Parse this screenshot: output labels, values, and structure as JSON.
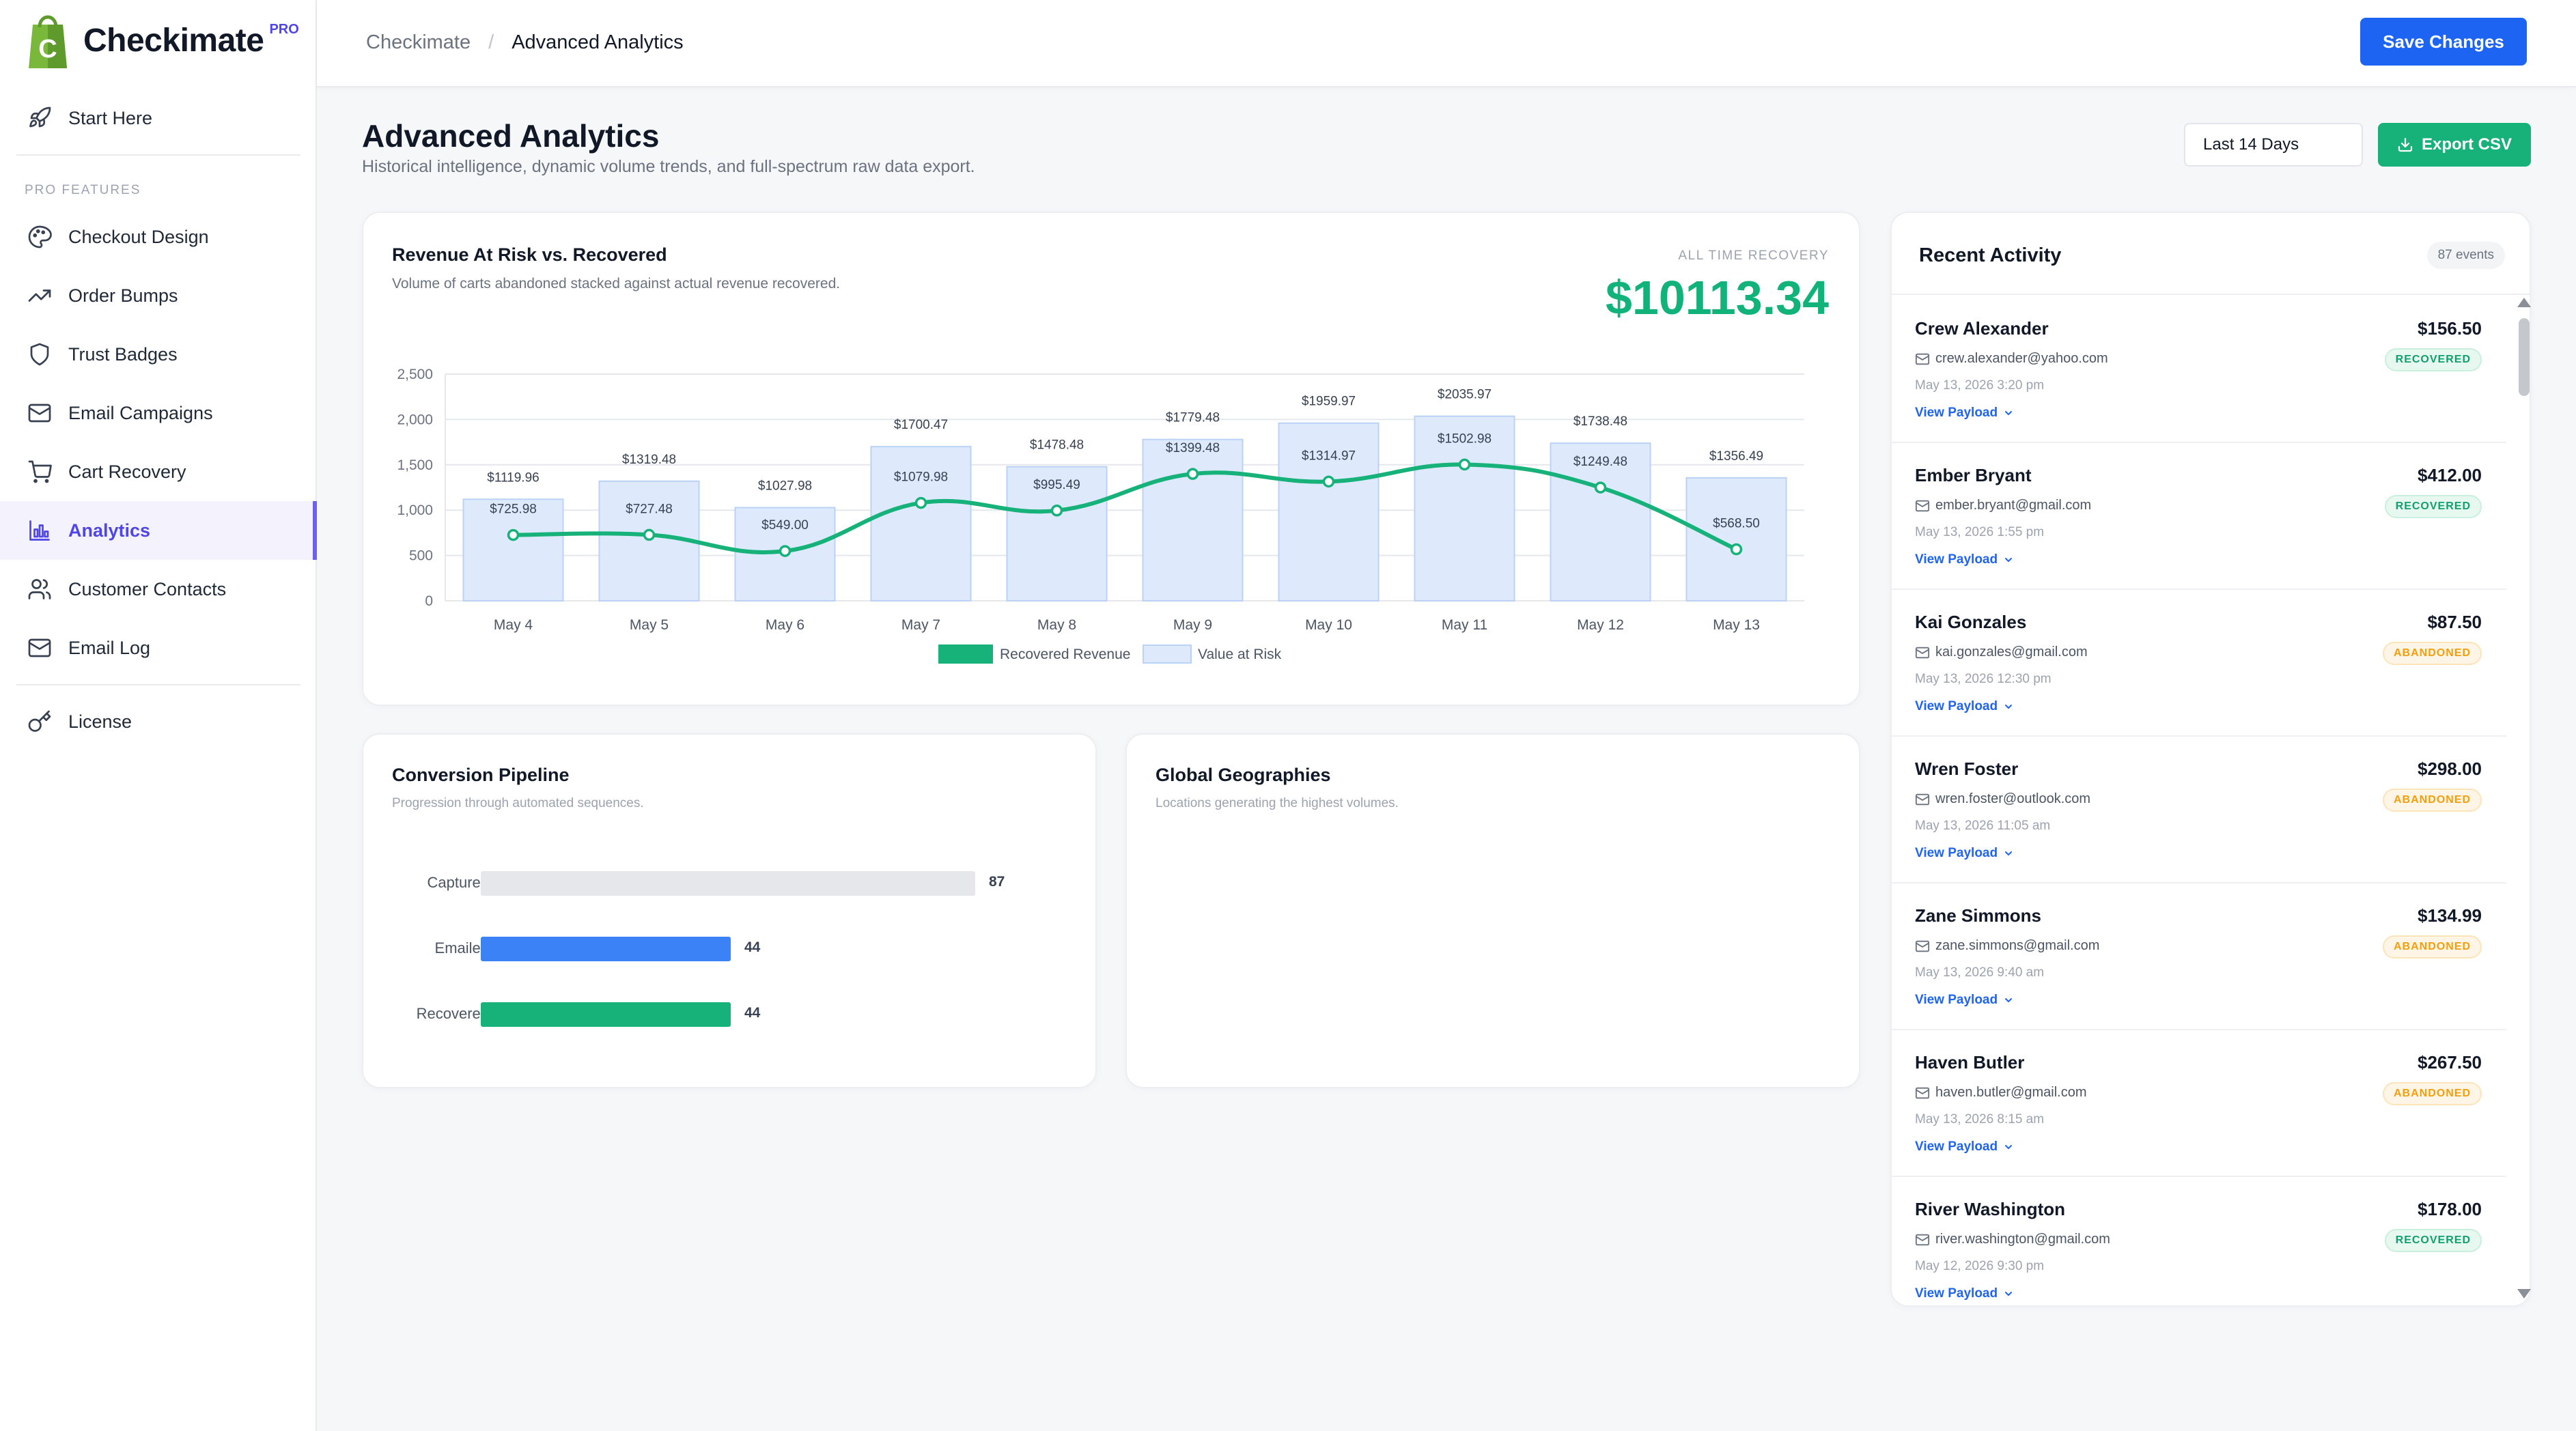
{
  "brand": {
    "name": "Checkimate",
    "badge": "PRO"
  },
  "sidebar": {
    "start": {
      "label": "Start Here",
      "icon": "rocket-icon"
    },
    "section_label": "PRO FEATURES",
    "items": [
      {
        "label": "Checkout Design",
        "icon": "palette-icon"
      },
      {
        "label": "Order Bumps",
        "icon": "trending-up-icon"
      },
      {
        "label": "Trust Badges",
        "icon": "shield-icon"
      },
      {
        "label": "Email Campaigns",
        "icon": "mail-icon"
      },
      {
        "label": "Cart Recovery",
        "icon": "cart-icon"
      },
      {
        "label": "Analytics",
        "icon": "bar-chart-icon",
        "active": true
      },
      {
        "label": "Customer Contacts",
        "icon": "users-icon"
      },
      {
        "label": "Email Log",
        "icon": "mail-log-icon"
      }
    ],
    "license": {
      "label": "License",
      "icon": "key-icon"
    }
  },
  "breadcrumb": {
    "root": "Checkimate",
    "separator": "/",
    "current": "Advanced Analytics"
  },
  "toolbar": {
    "save_label": "Save Changes"
  },
  "page": {
    "title": "Advanced Analytics",
    "subtitle": "Historical intelligence, dynamic volume trends, and full-spectrum raw data export.",
    "range_label": "Last 14 Days",
    "export_label": "Export CSV"
  },
  "revenue_card": {
    "title": "Revenue At Risk vs. Recovered",
    "subtitle": "Volume of carts abandoned stacked against actual revenue recovered.",
    "total_label": "ALL TIME RECOVERY",
    "total_value": "$10113.34"
  },
  "colors": {
    "accent": "#4f46e5",
    "primary": "#1d64f2",
    "green": "#16b27a",
    "risk_bar": "#deeafc",
    "risk_bar_border": "#b9d2f6",
    "emailed": "#3b82f6",
    "captured": "#e5e7eb"
  },
  "chart_data": [
    {
      "type": "bar",
      "title": "Revenue At Risk vs. Recovered",
      "categories": [
        "May 4",
        "May 5",
        "May 6",
        "May 7",
        "May 8",
        "May 9",
        "May 10",
        "May 11",
        "May 12",
        "May 13"
      ],
      "series": [
        {
          "name": "Value at Risk",
          "type": "bar",
          "values": [
            1119.96,
            1319.48,
            1027.98,
            1700.47,
            1478.48,
            1779.48,
            1959.97,
            2035.97,
            1738.48,
            1356.49
          ]
        },
        {
          "name": "Recovered Revenue",
          "type": "line",
          "values": [
            725.98,
            727.48,
            549.0,
            1079.98,
            995.49,
            1399.48,
            1314.97,
            1502.98,
            1249.48,
            568.5
          ]
        }
      ],
      "value_labels_risk": [
        "$1119.96",
        "$1319.48",
        "$1027.98",
        "$1700.47",
        "$1478.48",
        "$1779.48",
        "$1959.97",
        "$2035.97",
        "$1738.48",
        "$1356.49"
      ],
      "value_labels_recovered": [
        "$725.98",
        "$727.48",
        "$549.00",
        "$1079.98",
        "$995.49",
        "$1399.48",
        "$1314.97",
        "$1502.98",
        "$1249.48",
        "$568.50"
      ],
      "y_ticks": [
        "0",
        "500",
        "1,000",
        "1,500",
        "2,000",
        "2,500"
      ],
      "ylim": [
        0,
        2500
      ],
      "grid": true,
      "legend": "bottom-center"
    },
    {
      "type": "bar",
      "title": "Conversion Pipeline",
      "categories": [
        "Captured",
        "Emailed",
        "Recovered"
      ],
      "values": [
        87,
        44,
        44
      ],
      "orientation": "horizontal"
    }
  ],
  "pipeline": {
    "title": "Conversion Pipeline",
    "subtitle": "Progression through automated sequences.",
    "rows": [
      {
        "label": "Captured",
        "value": "87"
      },
      {
        "label": "Emailed",
        "value": "44"
      },
      {
        "label": "Recovered",
        "value": "44"
      }
    ]
  },
  "geo": {
    "title": "Global Geographies",
    "subtitle": "Locations generating the highest volumes."
  },
  "activity": {
    "title": "Recent Activity",
    "count": "87 events",
    "payload_label": "View Payload",
    "items": [
      {
        "name": "Crew Alexander",
        "email": "crew.alexander@yahoo.com",
        "date": "May 13, 2026 3:20 pm",
        "amount": "$156.50",
        "status": "RECOVERED"
      },
      {
        "name": "Ember Bryant",
        "email": "ember.bryant@gmail.com",
        "date": "May 13, 2026 1:55 pm",
        "amount": "$412.00",
        "status": "RECOVERED"
      },
      {
        "name": "Kai Gonzales",
        "email": "kai.gonzales@gmail.com",
        "date": "May 13, 2026 12:30 pm",
        "amount": "$87.50",
        "status": "ABANDONED"
      },
      {
        "name": "Wren Foster",
        "email": "wren.foster@outlook.com",
        "date": "May 13, 2026 11:05 am",
        "amount": "$298.00",
        "status": "ABANDONED"
      },
      {
        "name": "Zane Simmons",
        "email": "zane.simmons@gmail.com",
        "date": "May 13, 2026 9:40 am",
        "amount": "$134.99",
        "status": "ABANDONED"
      },
      {
        "name": "Haven Butler",
        "email": "haven.butler@gmail.com",
        "date": "May 13, 2026 8:15 am",
        "amount": "$267.50",
        "status": "ABANDONED"
      },
      {
        "name": "River Washington",
        "email": "river.washington@gmail.com",
        "date": "May 12, 2026 9:30 pm",
        "amount": "$178.00",
        "status": "RECOVERED"
      }
    ]
  }
}
